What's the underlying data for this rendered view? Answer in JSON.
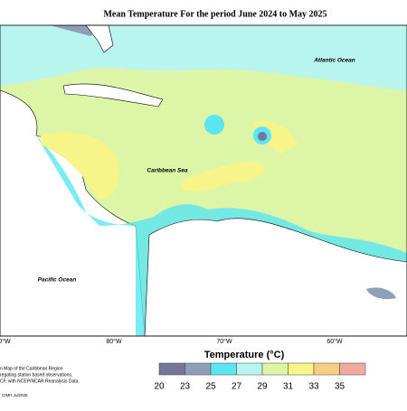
{
  "title": "Mean Temperature For the period June 2024 to May 2025",
  "labels": {
    "atlantic": "Atlantic Ocean",
    "caribbean": "Caribbean Sea",
    "pacific": "Pacific Ocean"
  },
  "longitudes": [
    "0°W",
    "80°W",
    "70°W",
    "60°W"
  ],
  "legend": {
    "title": "Temperature (°C)",
    "ticks": [
      20,
      23,
      25,
      27,
      29,
      31,
      33,
      35
    ],
    "colors": [
      "#75759a",
      "#8da0b8",
      "#5ae6f2",
      "#b8f5ee",
      "#dcf5a6",
      "#f7f58a",
      "#f5ce80",
      "#f0aaa2"
    ]
  },
  "footnote": [
    "n Map of the Caribbean Region",
    "regating station based observations,",
    "CF, with NCEP/NCAR Reanalysis Data."
  ],
  "credit": "CIMH Jul2025"
}
